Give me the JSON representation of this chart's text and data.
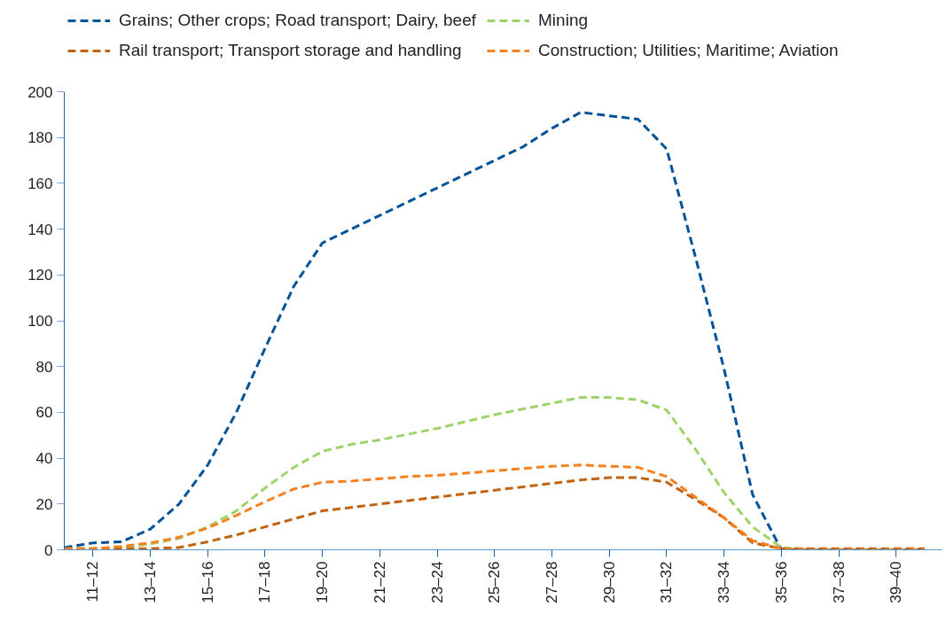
{
  "chart_data": {
    "type": "line",
    "categories": [
      null,
      "11–12",
      null,
      "13–14",
      null,
      "15–16",
      null,
      "17–18",
      null,
      "19–20",
      null,
      "21–22",
      null,
      "23–24",
      null,
      "25–26",
      null,
      "27–28",
      null,
      "29–30",
      null,
      "31–32",
      null,
      "33–34",
      null,
      "35–36",
      null,
      "37–38",
      null,
      "39–40",
      null
    ],
    "series": [
      {
        "name": "Grains; Other crops; Road transport; Dairy, beef",
        "color": "#00539b",
        "values": [
          1,
          3,
          3.5,
          9,
          20,
          37,
          60,
          88,
          115,
          134,
          140,
          146,
          152,
          158,
          164,
          170,
          176,
          184,
          191,
          189.5,
          188,
          175,
          128,
          79,
          24,
          0,
          0,
          0,
          0,
          0,
          0
        ]
      },
      {
        "name": "Mining",
        "color": "#9ed36a",
        "values": [
          0.5,
          0.5,
          1,
          2.5,
          5,
          10,
          17,
          27,
          36,
          43,
          46,
          48,
          50.5,
          53,
          56,
          59,
          61.5,
          64,
          66.5,
          66.5,
          65.5,
          61,
          44,
          25,
          10,
          1,
          0,
          0,
          null,
          null,
          null
        ]
      },
      {
        "name": "Rail transport; Transport storage and handling",
        "color": "#c0620f",
        "values": [
          0.5,
          0.5,
          0.5,
          0.5,
          1,
          3.5,
          6.5,
          10,
          13.5,
          17,
          18.5,
          20,
          21.5,
          23,
          24.5,
          26,
          27.5,
          29,
          30.5,
          31.5,
          31.5,
          29.5,
          22,
          14,
          3,
          0.5,
          0.5,
          0.5,
          0.5,
          0.5,
          0.5
        ]
      },
      {
        "name": "Construction; Utilities; Maritime; Aviation",
        "color": "#f7801f",
        "values": [
          0.5,
          0.5,
          1.5,
          3,
          5.5,
          9.5,
          15,
          21,
          26.5,
          29.5,
          30,
          31,
          32,
          32.5,
          33.5,
          34.5,
          35.5,
          36.5,
          37,
          36.5,
          36,
          32,
          23,
          14,
          4,
          0.5,
          0,
          0,
          0,
          0,
          0
        ]
      }
    ],
    "ylim": [
      0,
      200
    ],
    "yticks": [
      0,
      20,
      40,
      60,
      80,
      100,
      120,
      140,
      160,
      180,
      200
    ],
    "grid": false,
    "legend": "top",
    "line_style": "dashed",
    "marker": "none"
  }
}
